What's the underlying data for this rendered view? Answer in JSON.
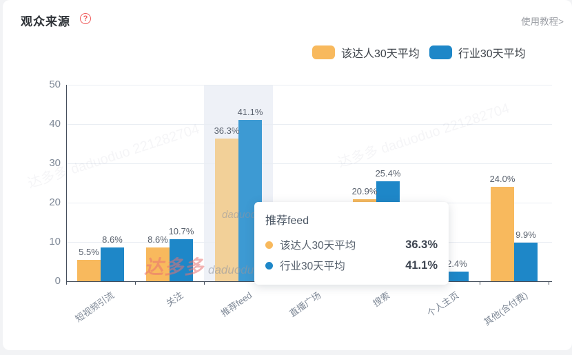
{
  "header": {
    "title": "观众来源",
    "help_glyph": "?",
    "tutorial_link": "使用教程>"
  },
  "legend": {
    "items": [
      {
        "label": "该达人30天平均",
        "color": "#F8B95D"
      },
      {
        "label": "行业30天平均",
        "color": "#1E87C8"
      }
    ]
  },
  "chart_data": {
    "type": "bar",
    "title": "观众来源",
    "categories": [
      "短视频引流",
      "关注",
      "推荐feed",
      "直播广场",
      "搜索",
      "个人主页",
      "其他(含付费)"
    ],
    "series": [
      {
        "name": "该达人30天平均",
        "color": "#F8B95D",
        "hover_color": "#F2D098",
        "values": [
          5.5,
          8.6,
          36.3,
          null,
          20.9,
          null,
          24.0
        ]
      },
      {
        "name": "行业30天平均",
        "color": "#1E87C8",
        "hover_color": "#3D9AD3",
        "values": [
          8.6,
          10.7,
          41.1,
          null,
          25.4,
          2.4,
          9.9
        ]
      }
    ],
    "value_suffix": "%",
    "ylim": [
      0,
      50
    ],
    "yticks": [
      0,
      10,
      20,
      30,
      40,
      50
    ],
    "grid": true,
    "legend_position": "top-right",
    "highlighted_category": "推荐feed",
    "highlighted_index": 2,
    "occlusion_note": "直播广场 bars and the 个人主页 该达人 bar are hidden behind the tooltip; 个人主页 行业 label 2.4% is partially covered"
  },
  "tooltip": {
    "title": "推荐feed",
    "rows": [
      {
        "label": "该达人30天平均",
        "value": "36.3%",
        "color": "#F8B95D"
      },
      {
        "label": "行业30天平均",
        "value": "41.1%",
        "color": "#1E87C8"
      }
    ]
  },
  "watermark": {
    "brand": "达多多",
    "latin": "daduoduo",
    "latin_small": "daduoduo",
    "ghost": "达多多 daduoduo 221282704"
  },
  "colors": {
    "axis_line": "#454E5C",
    "gridline": "#E9EDF3",
    "highlight_band": "#EEF1F7",
    "card_bg": "#FFFFFF",
    "page_bg": "#F2F3F5",
    "help_red": "#F05A5A"
  }
}
